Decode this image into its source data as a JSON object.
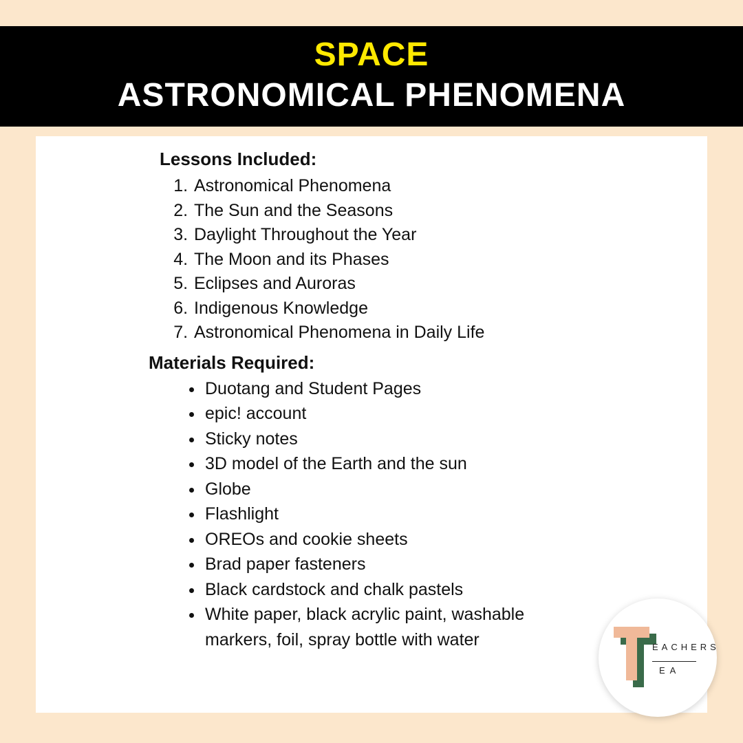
{
  "header": {
    "title": "SPACE",
    "subtitle": "ASTRONOMICAL PHENOMENA",
    "title_color": "#ffe900",
    "subtitle_color": "#ffffff",
    "band_bg": "#000000"
  },
  "page": {
    "bg_color": "#fce7cc",
    "card_bg": "#ffffff"
  },
  "lessons": {
    "heading": "Lessons Included:",
    "items": [
      "Astronomical Phenomena",
      "The Sun and the Seasons",
      "Daylight Throughout the Year",
      "The Moon and its Phases",
      "Eclipses and Auroras",
      "Indigenous Knowledge",
      "Astronomical Phenomena in Daily Life"
    ]
  },
  "materials": {
    "heading": "Materials Required:",
    "items": [
      "Duotang and Student Pages",
      "epic! account",
      "Sticky notes",
      "3D model of the Earth and the sun",
      "Globe",
      "Flashlight",
      "OREOs and cookie sheets",
      "Brad paper fasteners",
      "Black cardstock and chalk pastels",
      "White paper, black acrylic paint, washable markers, foil, spray bottle with water"
    ]
  },
  "logo": {
    "line1": "EACHERS",
    "line2": "EA",
    "t_front_color": "#f0b999",
    "t_back_color": "#3a6b4a"
  }
}
